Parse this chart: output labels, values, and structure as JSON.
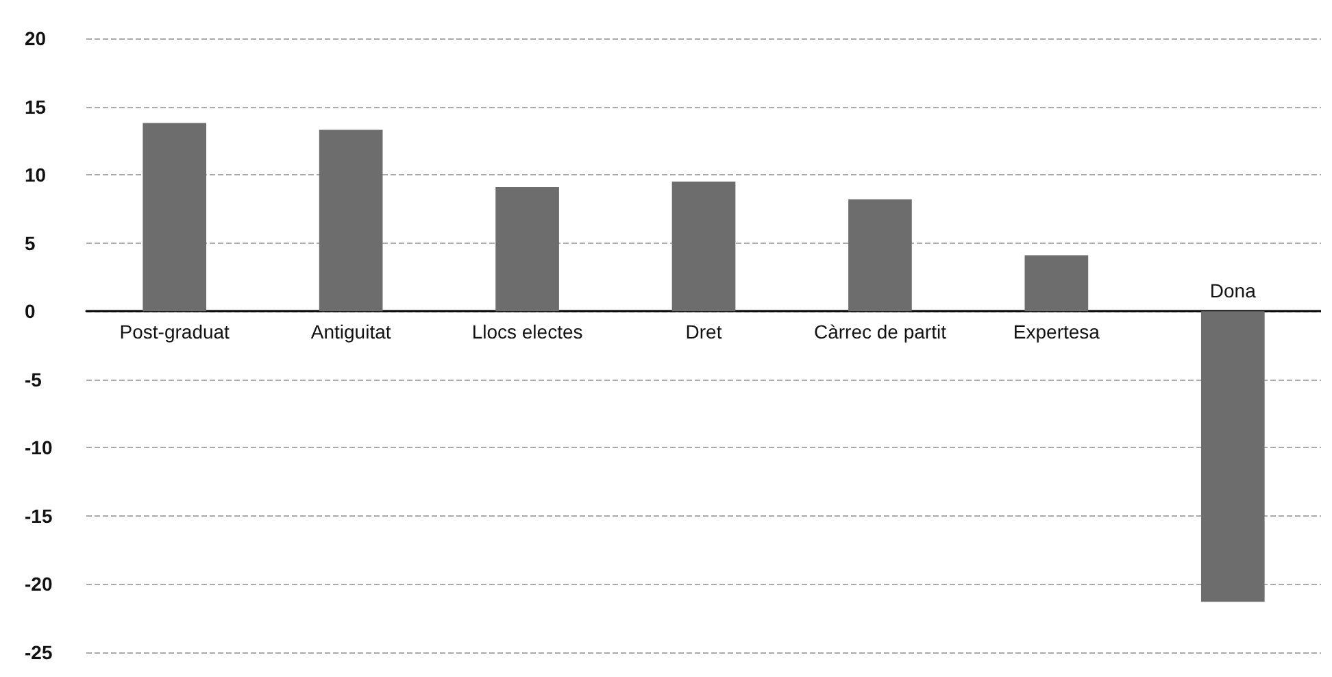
{
  "chart_data": {
    "type": "bar",
    "categories": [
      "Post-graduat",
      "Antiguitat",
      "Llocs electes",
      "Dret",
      "Càrrec de partit",
      "Expertesa",
      "Dona"
    ],
    "values": [
      13.8,
      13.3,
      9.1,
      9.5,
      8.2,
      4.1,
      -21.3
    ],
    "color": "#6d6d6d",
    "ylim": [
      -25,
      20
    ],
    "yticks": [
      -25,
      -20,
      -15,
      -10,
      -5,
      0,
      5,
      10,
      15,
      20
    ],
    "grid": "y"
  }
}
